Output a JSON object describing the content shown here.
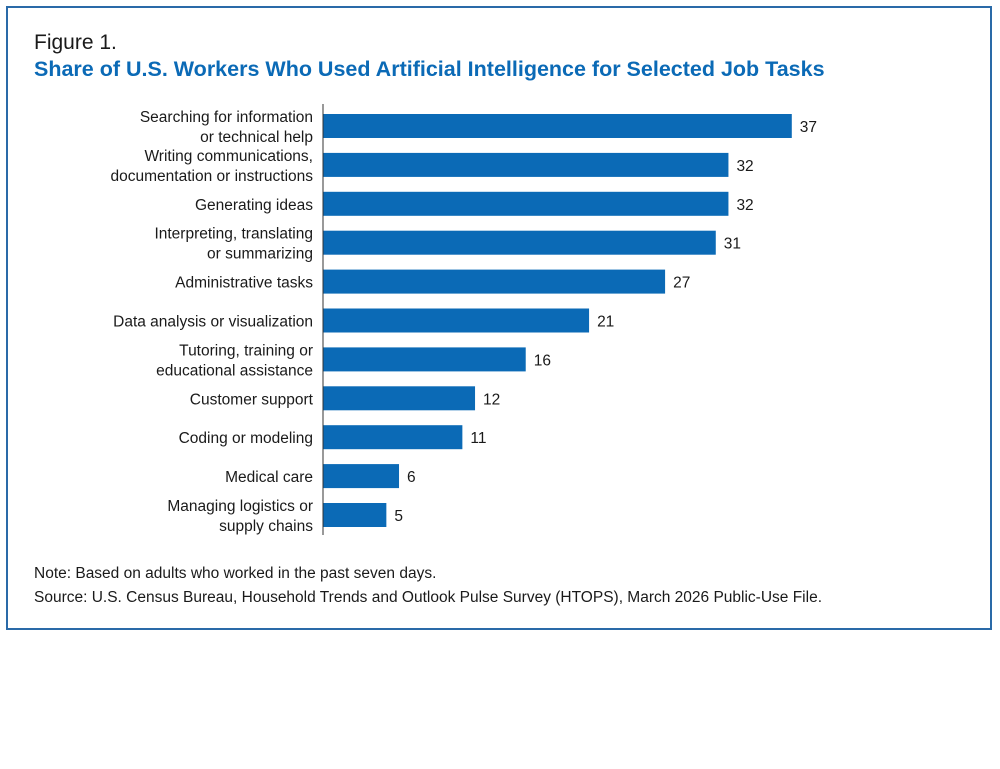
{
  "figure_label": "Figure 1.",
  "title": "Share of U.S. Workers Who Used Artificial Intelligence for Selected Job Tasks",
  "note": "Note: Based on adults who worked in the past seven days.",
  "source": "Source: U.S. Census Bureau, Household Trends and Outlook Pulse Survey (HTOPS), March 2026 Public-Use File.",
  "colors": {
    "bar": "#0b6ab6",
    "title": "#0b6ab6",
    "frame": "#2a6aa8",
    "axis": "#333333"
  },
  "chart_data": {
    "type": "bar",
    "orientation": "horizontal",
    "title": "Share of U.S. Workers Who Used Artificial Intelligence for Selected Job Tasks",
    "xlabel": "",
    "ylabel": "",
    "grid": false,
    "categories": [
      [
        "Searching for information",
        "or technical help"
      ],
      [
        "Writing communications,",
        "documentation or instructions"
      ],
      [
        "Generating ideas"
      ],
      [
        "Interpreting, translating",
        "or summarizing"
      ],
      [
        "Administrative tasks"
      ],
      [
        "Data analysis or visualization"
      ],
      [
        "Tutoring, training or",
        "educational assistance"
      ],
      [
        "Customer support"
      ],
      [
        "Coding or modeling"
      ],
      [
        "Medical care"
      ],
      [
        "Managing logistics or",
        "supply chains"
      ]
    ],
    "values": [
      37,
      32,
      32,
      31,
      27,
      21,
      16,
      12,
      11,
      6,
      5
    ],
    "value_labels": [
      "37",
      "32",
      "32",
      "31",
      "27",
      "21",
      "16",
      "12",
      "11",
      "6",
      "5"
    ]
  }
}
